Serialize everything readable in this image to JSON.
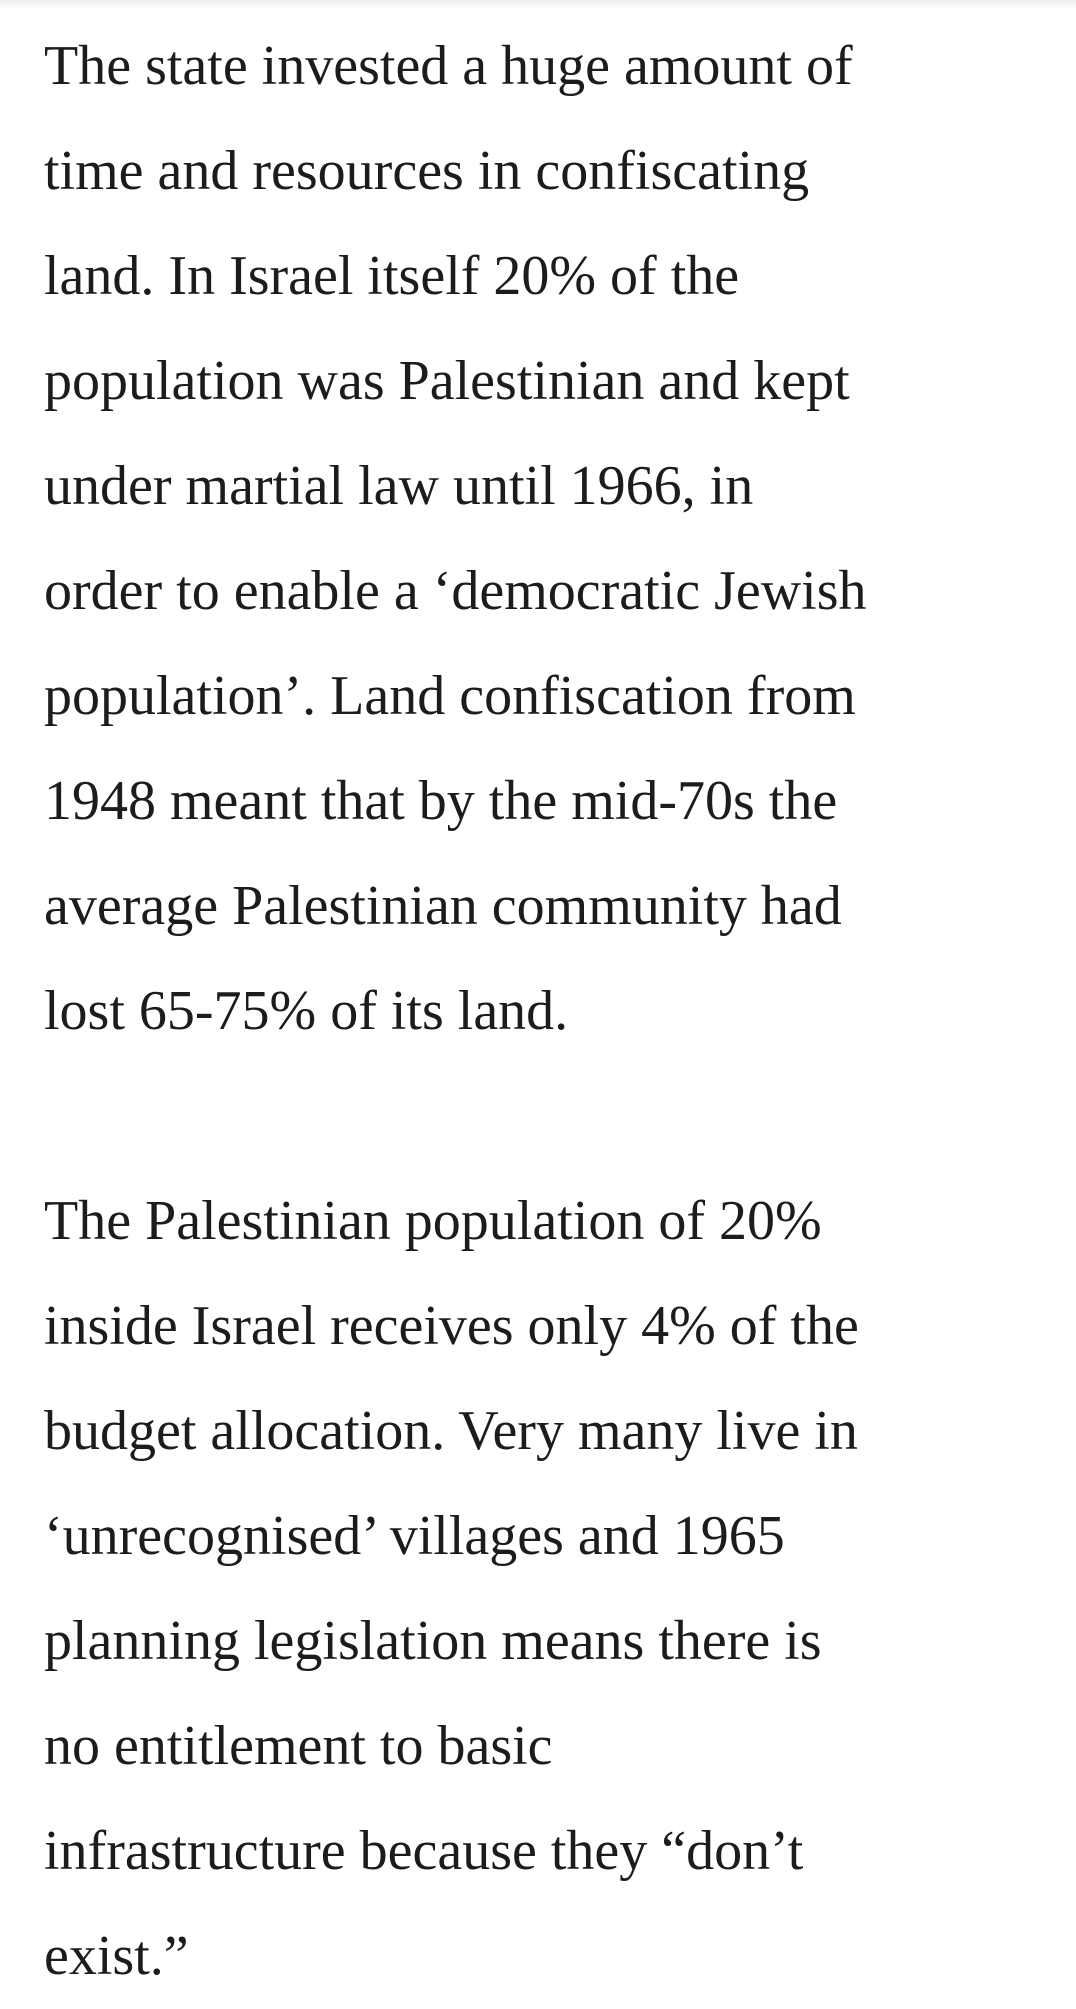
{
  "article": {
    "paragraphs": [
      {
        "lines": [
          "The state invested a huge amount of",
          "time and resources in confiscating",
          "land. In Israel itself 20% of the",
          "population was Palestinian and kept",
          "under martial law until 1966, in",
          "order to enable a ‘democratic Jewish",
          "population’. Land confiscation from",
          "1948 meant that by the mid-70s the",
          "average Palestinian community had",
          "lost 65-75% of its land."
        ]
      },
      {
        "lines": [
          "The Palestinian population of 20%",
          "inside Israel receives only 4% of the",
          "budget allocation. Very many live in",
          "‘unrecognised’ villages and 1965",
          "planning legislation means there is",
          "no entitlement to basic",
          "infrastructure because they “don’t",
          "exist.”"
        ]
      }
    ]
  }
}
